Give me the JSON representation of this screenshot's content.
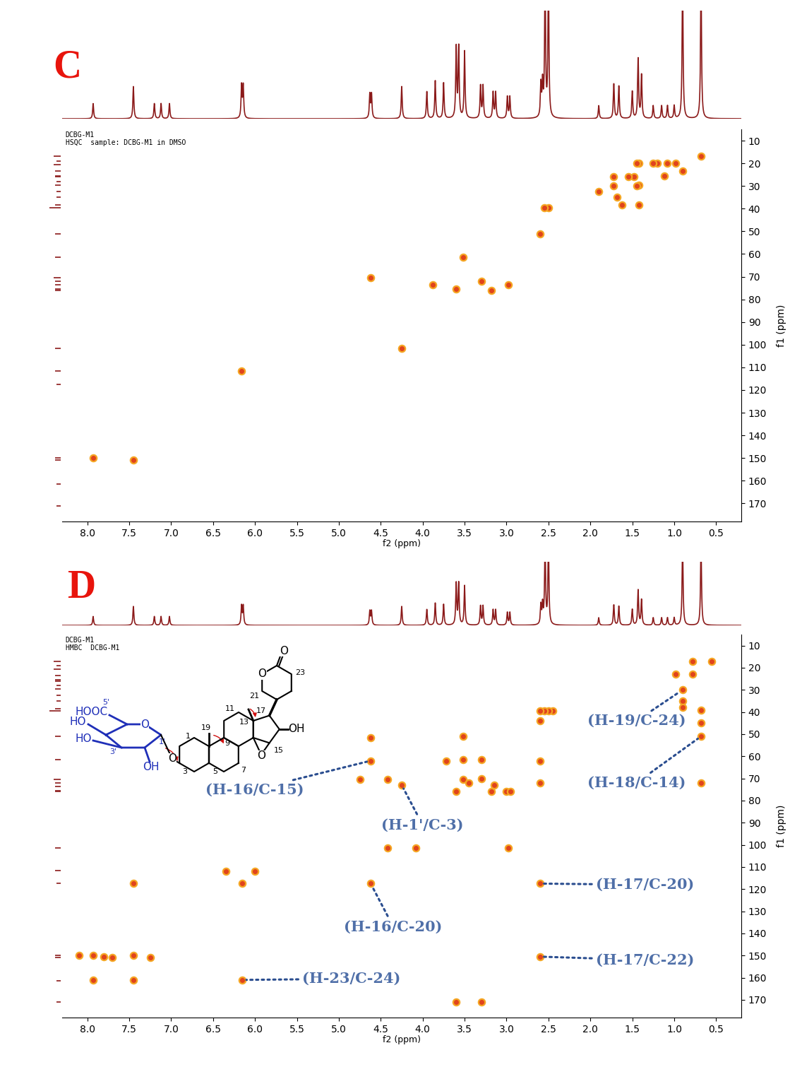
{
  "chart_data": [
    {
      "type": "scatter",
      "panel_label": "C",
      "header": [
        "DCBG-M1",
        "HSQC  sample: DCBG-M1 in DMSO"
      ],
      "x_label": "f2 (ppm)",
      "y_label": "f1 (ppm)",
      "xlim": [
        8.3,
        0.2
      ],
      "ylim": [
        178,
        5
      ],
      "xticks": [
        8.0,
        7.5,
        7.0,
        6.5,
        6.0,
        5.5,
        5.0,
        4.5,
        4.0,
        3.5,
        3.0,
        2.5,
        2.0,
        1.5,
        1.0,
        0.5
      ],
      "yticks": [
        10,
        20,
        30,
        40,
        50,
        60,
        70,
        80,
        90,
        100,
        110,
        120,
        130,
        140,
        150,
        160,
        170
      ],
      "color": "#e0441c",
      "x": [
        0.68,
        0.9,
        0.98,
        1.08,
        1.12,
        1.2,
        1.25,
        1.42,
        1.45,
        1.42,
        1.48,
        1.42,
        1.45,
        1.55,
        1.72,
        1.72,
        1.68,
        1.62,
        1.9,
        2.5,
        2.55,
        2.6,
        3.52,
        4.62,
        3.88,
        3.6,
        3.3,
        3.18,
        2.98,
        4.25,
        6.16,
        7.93,
        7.45
      ],
      "y": [
        17,
        23.5,
        20,
        20,
        25.5,
        20,
        20,
        20,
        20,
        29.5,
        26,
        38.5,
        30,
        26,
        26,
        30,
        35,
        38.5,
        32.5,
        39.5,
        39.5,
        51,
        61.5,
        70.5,
        73.5,
        75.5,
        72,
        76,
        73.5,
        101.5,
        111.5,
        150,
        151
      ],
      "proton_spectrum": {
        "color": "#8b1a1a",
        "ylim": [
          0,
          1
        ],
        "ppm": [
          7.93,
          7.45,
          7.2,
          7.12,
          7.02,
          6.16,
          6.14,
          4.63,
          4.61,
          4.25,
          3.95,
          3.85,
          3.75,
          3.6,
          3.57,
          3.5,
          3.31,
          3.28,
          3.16,
          3.13,
          2.99,
          2.96,
          2.59,
          2.57,
          2.54,
          2.5,
          1.9,
          1.72,
          1.66,
          1.5,
          1.43,
          1.39,
          1.25,
          1.15,
          1.08,
          1.0,
          0.9,
          0.68
        ],
        "heights": [
          0.14,
          0.3,
          0.14,
          0.14,
          0.14,
          0.3,
          0.3,
          0.22,
          0.22,
          0.3,
          0.25,
          0.35,
          0.33,
          0.65,
          0.65,
          0.62,
          0.3,
          0.3,
          0.24,
          0.24,
          0.2,
          0.2,
          0.3,
          0.3,
          1.3,
          1.3,
          0.12,
          0.32,
          0.3,
          0.25,
          0.55,
          0.4,
          0.12,
          0.12,
          0.12,
          0.12,
          1.3,
          1.3
        ]
      },
      "carbon_spectrum": {
        "color": "#8b1a1a",
        "xlim": [
          1,
          0
        ],
        "ppm": [
          17,
          19,
          20.5,
          23.5,
          25.5,
          26,
          28,
          29.5,
          32.5,
          35,
          38.5,
          39.5,
          51,
          61.5,
          70.5,
          72,
          73.5,
          75.5,
          76,
          101.5,
          111.5,
          117.5,
          150,
          151,
          161.5,
          171
        ],
        "heights": [
          0.6,
          0.4,
          0.6,
          0.5,
          0.5,
          0.5,
          0.4,
          0.5,
          0.4,
          0.4,
          0.5,
          1.0,
          0.5,
          0.5,
          0.6,
          0.5,
          0.5,
          0.5,
          0.5,
          0.5,
          0.5,
          0.4,
          0.5,
          0.5,
          0.4,
          0.4
        ]
      }
    },
    {
      "type": "scatter",
      "panel_label": "D",
      "header": [
        "DCBG-M1",
        "HMBC  DCBG-M1"
      ],
      "x_label": "f2 (ppm)",
      "y_label": "f1 (ppm)",
      "xlim": [
        8.3,
        0.2
      ],
      "ylim": [
        178,
        5
      ],
      "xticks": [
        8.0,
        7.5,
        7.0,
        6.5,
        6.0,
        5.5,
        5.0,
        4.5,
        4.0,
        3.5,
        3.0,
        2.5,
        2.0,
        1.5,
        1.0,
        0.5
      ],
      "yticks": [
        10,
        20,
        30,
        40,
        50,
        60,
        70,
        80,
        90,
        100,
        110,
        120,
        130,
        140,
        150,
        160,
        170
      ],
      "color": "#e0441c",
      "x": [
        0.55,
        0.78,
        0.98,
        0.78,
        0.9,
        0.9,
        0.9,
        0.68,
        0.68,
        0.68,
        0.68,
        2.45,
        2.5,
        2.55,
        2.6,
        2.6,
        2.6,
        2.6,
        2.6,
        2.6,
        3.52,
        3.52,
        3.52,
        3.3,
        3.3,
        3.18,
        3.45,
        3.72,
        3.6,
        3.6,
        3.3,
        3.15,
        3.0,
        2.95,
        2.98,
        4.62,
        4.62,
        4.62,
        4.75,
        4.42,
        4.25,
        4.42,
        4.08,
        6.35,
        6.0,
        6.15,
        6.15,
        7.45,
        7.45,
        7.45,
        7.93,
        7.93,
        7.7,
        7.8,
        8.1,
        7.25
      ],
      "y": [
        17,
        17,
        23,
        23,
        30,
        35,
        38,
        39,
        45,
        51,
        72,
        39.5,
        39.5,
        39.5,
        39.5,
        44,
        62,
        72,
        117.5,
        150.5,
        51,
        61.5,
        70.5,
        61.5,
        70,
        76,
        72,
        62,
        76,
        171,
        171,
        73,
        76,
        76,
        101.5,
        62,
        51.5,
        117.5,
        70.5,
        70.5,
        73,
        101.5,
        101.5,
        112,
        112,
        117.5,
        161,
        117.5,
        150,
        161,
        150,
        161,
        151,
        150.5,
        150,
        151
      ],
      "annotations": [
        {
          "text": "(H-16/C-15)",
          "x": 4.62,
          "y": 62
        },
        {
          "text": "(H-1'/C-3)",
          "x": 4.25,
          "y": 73
        },
        {
          "text": "(H-19/C-24)",
          "x": 0.9,
          "y": 30
        },
        {
          "text": "(H-18/C-14)",
          "x": 0.68,
          "y": 51
        },
        {
          "text": "(H-17/C-20)",
          "x": 2.6,
          "y": 117.5
        },
        {
          "text": "(H-16/C-20)",
          "x": 4.62,
          "y": 117.5
        },
        {
          "text": "(H-17/C-22)",
          "x": 2.6,
          "y": 150.5
        },
        {
          "text": "(H-23/C-24)",
          "x": 6.15,
          "y": 161
        }
      ],
      "structure": {
        "labels": [
          "HOOC",
          "5'",
          "HO",
          "HO",
          "3'",
          "OH",
          "O",
          "1'",
          "O",
          "3",
          "1",
          "19",
          "9",
          "5",
          "11",
          "13",
          "7",
          "21",
          "23",
          "O",
          "O",
          "17",
          "OH",
          "15",
          "O"
        ]
      },
      "proton_spectrum": {
        "color": "#8b1a1a",
        "ylim": [
          0,
          1
        ],
        "ppm": [
          7.93,
          7.45,
          7.2,
          7.12,
          7.02,
          6.16,
          6.14,
          4.63,
          4.61,
          4.25,
          3.95,
          3.85,
          3.75,
          3.6,
          3.57,
          3.5,
          3.31,
          3.28,
          3.16,
          3.13,
          2.99,
          2.96,
          2.59,
          2.57,
          2.54,
          2.5,
          1.9,
          1.72,
          1.66,
          1.5,
          1.43,
          1.39,
          1.25,
          1.15,
          1.08,
          1.0,
          0.9,
          0.68
        ],
        "heights": [
          0.14,
          0.3,
          0.14,
          0.14,
          0.14,
          0.3,
          0.3,
          0.22,
          0.22,
          0.3,
          0.25,
          0.35,
          0.33,
          0.65,
          0.65,
          0.62,
          0.3,
          0.3,
          0.24,
          0.24,
          0.2,
          0.2,
          0.3,
          0.3,
          1.3,
          1.3,
          0.12,
          0.32,
          0.3,
          0.25,
          0.55,
          0.4,
          0.12,
          0.12,
          0.12,
          0.12,
          1.3,
          1.3
        ]
      },
      "carbon_spectrum": {
        "color": "#8b1a1a",
        "xlim": [
          1,
          0
        ],
        "ppm": [
          17,
          19,
          20.5,
          23.5,
          25.5,
          26,
          28,
          29.5,
          32.5,
          35,
          38.5,
          39.5,
          51,
          61.5,
          70.5,
          72,
          73.5,
          75.5,
          76,
          101.5,
          111.5,
          117.5,
          150,
          151,
          161.5,
          171
        ],
        "heights": [
          0.6,
          0.4,
          0.6,
          0.5,
          0.5,
          0.5,
          0.4,
          0.5,
          0.4,
          0.4,
          0.5,
          1.0,
          0.5,
          0.5,
          0.6,
          0.5,
          0.5,
          0.5,
          0.5,
          0.5,
          0.5,
          0.4,
          0.5,
          0.5,
          0.4,
          0.4
        ]
      }
    }
  ]
}
